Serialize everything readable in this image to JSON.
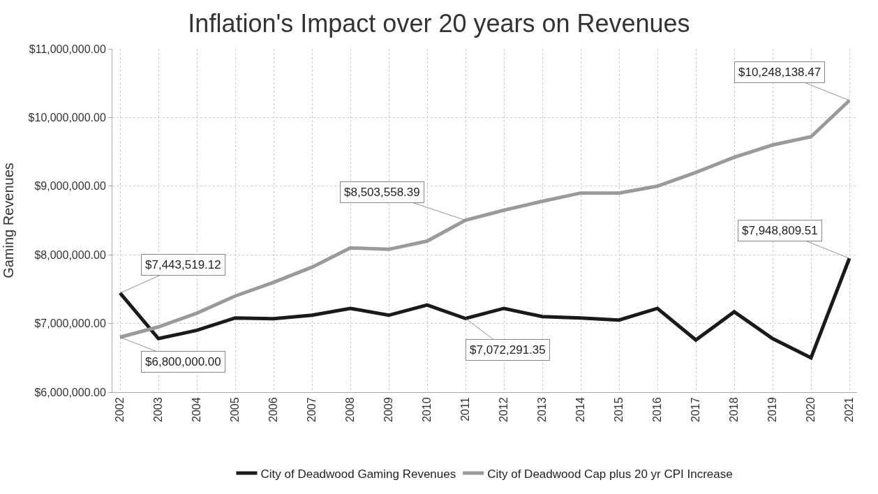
{
  "chart_data": {
    "type": "line",
    "title": "Inflation's Impact over 20 years on Revenues",
    "ylabel": "Gaming Revenues",
    "categories": [
      "2002",
      "2003",
      "2004",
      "2005",
      "2006",
      "2007",
      "2008",
      "2009",
      "2010",
      "2011",
      "2012",
      "2013",
      "2014",
      "2015",
      "2016",
      "2017",
      "2018",
      "2019",
      "2020",
      "2021"
    ],
    "series": [
      {
        "name": "City of Deadwood Gaming Revenues",
        "color": "#1a1a1a",
        "values": [
          7443519.12,
          6780000,
          6900000,
          7080000,
          7070000,
          7120000,
          7220000,
          7120000,
          7270000,
          7072291.35,
          7220000,
          7100000,
          7080000,
          7050000,
          7220000,
          6760000,
          7170000,
          6780000,
          6500000,
          7948809.51
        ],
        "value_labels": [
          "$7,443,519.12",
          null,
          null,
          null,
          null,
          null,
          null,
          null,
          null,
          "$7,072,291.35",
          null,
          null,
          null,
          null,
          null,
          null,
          null,
          null,
          null,
          "$7,948,809.51"
        ]
      },
      {
        "name": "City of Deadwood Cap plus 20 yr CPI Increase",
        "color": "#9a9a9a",
        "values": [
          6800000,
          6950000,
          7150000,
          7400000,
          7600000,
          7820000,
          8100000,
          8080000,
          8200000,
          8503558.39,
          8650000,
          8780000,
          8900000,
          8900000,
          9000000,
          9200000,
          9420000,
          9600000,
          9720000,
          10248138.47
        ],
        "value_labels": [
          "$6,800,000.00",
          null,
          null,
          null,
          null,
          null,
          null,
          null,
          null,
          "$8,503,558.39",
          null,
          null,
          null,
          null,
          null,
          null,
          null,
          null,
          null,
          "$10,248,138.47"
        ]
      }
    ],
    "ylim": [
      6000000,
      11000000
    ],
    "yticks": [
      {
        "value": 6000000,
        "label": "$6,000,000.00"
      },
      {
        "value": 7000000,
        "label": "$7,000,000.00"
      },
      {
        "value": 8000000,
        "label": "$8,000,000.00"
      },
      {
        "value": 9000000,
        "label": "$9,000,000.00"
      },
      {
        "value": 10000000,
        "label": "$10,000,000.00"
      },
      {
        "value": 11000000,
        "label": "$11,000,000.00"
      }
    ],
    "grid": true,
    "legend": "bottom",
    "line_style": "solid"
  }
}
